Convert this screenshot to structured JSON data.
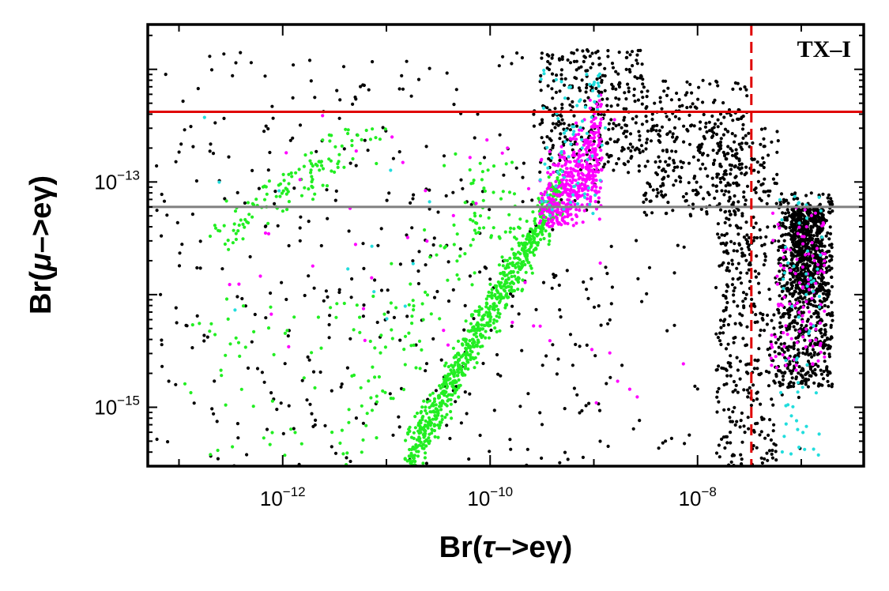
{
  "chart_data": {
    "type": "scatter",
    "xscale": "log",
    "yscale": "log",
    "xlim": [
      5e-14,
      4e-07
    ],
    "ylim": [
      3e-16,
      2.5e-12
    ],
    "grid": false,
    "panel_label": "TX–I",
    "xlabel": {
      "prefix": "Br(",
      "greek": "τ",
      "suffix": "–>eγ)"
    },
    "ylabel": {
      "prefix": "Br(",
      "greek": "μ",
      "suffix": "–>eγ)"
    },
    "x_ticks": [
      {
        "value": 1e-12,
        "base": "10",
        "exp": "−12"
      },
      {
        "value": 1e-10,
        "base": "10",
        "exp": "−10"
      },
      {
        "value": 1e-08,
        "base": "10",
        "exp": "−8"
      }
    ],
    "y_ticks": [
      {
        "value": 1e-13,
        "base": "10",
        "exp": "−13"
      },
      {
        "value": 1e-15,
        "base": "10",
        "exp": "−15"
      }
    ],
    "reference_lines": [
      {
        "orientation": "horizontal",
        "value": 4.2e-13,
        "color": "#e00000",
        "style": "solid"
      },
      {
        "orientation": "horizontal",
        "value": 6e-14,
        "color": "#808080",
        "style": "solid"
      },
      {
        "orientation": "vertical",
        "value": 3.3e-08,
        "color": "#e00000",
        "style": "dashed"
      }
    ],
    "series": [
      {
        "color": "#000000",
        "clusters": [
          {
            "x": [
              6e-14,
              1.5e-09
            ],
            "y": [
              3e-16,
              1.5e-12
            ],
            "n": 420,
            "mode": "uniform"
          },
          {
            "x": [
              3e-10,
              3e-09
            ],
            "y": [
              1.2e-13,
              1.5e-12
            ],
            "n": 320,
            "mode": "uniform"
          },
          {
            "x": [
              3e-09,
              3e-08
            ],
            "y": [
              5e-14,
              8e-13
            ],
            "n": 320,
            "mode": "uniform"
          },
          {
            "x": [
              8e-10,
              1e-07
            ],
            "y": [
              3e-16,
              4e-14
            ],
            "n": 40,
            "mode": "uniform"
          },
          {
            "x": [
              1.5e-08,
              6e-08
            ],
            "y": [
              3e-16,
              3e-13
            ],
            "n": 420,
            "mode": "uniform"
          },
          {
            "x": [
              6e-08,
              2e-07
            ],
            "y": [
              1.5e-15,
              8e-14
            ],
            "n": 650,
            "mode": "uniform"
          },
          {
            "x": [
              8e-08,
              1.6e-07
            ],
            "y": [
              1e-14,
              6e-14
            ],
            "n": 500,
            "mode": "uniform"
          }
        ]
      },
      {
        "color": "#22ee22",
        "clusters": [
          {
            "x": [
              2e-13,
              1e-11
            ],
            "y": [
              2.5e-14,
              3e-13
            ],
            "n": 130,
            "mode": "diagonal",
            "slope": 0.72,
            "spread": 0.12
          },
          {
            "x": [
              1e-13,
              8e-12
            ],
            "y": [
              3e-16,
              1e-14
            ],
            "n": 60,
            "mode": "uniform"
          },
          {
            "x": [
              3e-12,
              1e-10
            ],
            "y": [
              3e-16,
              3e-13
            ],
            "n": 90,
            "mode": "diagonal",
            "slope": 1.6,
            "spread": 0.35
          },
          {
            "x": [
              1.5e-11,
              5e-10
            ],
            "y": [
              3e-16,
              6e-13
            ],
            "n": 800,
            "mode": "diagonal",
            "slope": 1.65,
            "spread": 0.12
          },
          {
            "x": [
              6e-11,
              2e-10
            ],
            "y": [
              3e-14,
              1.5e-13
            ],
            "n": 40,
            "mode": "uniform"
          }
        ]
      },
      {
        "color": "#ff00ff",
        "clusters": [
          {
            "x": [
              3e-10,
              1.2e-09
            ],
            "y": [
              4e-14,
              9e-13
            ],
            "n": 450,
            "mode": "diagonal",
            "slope": 1.2,
            "spread": 0.22
          },
          {
            "x": [
              5e-08,
              1.7e-07
            ],
            "y": [
              2e-15,
              6e-14
            ],
            "n": 110,
            "mode": "uniform"
          },
          {
            "x": [
              2e-13,
              2e-09
            ],
            "y": [
              3e-15,
              4e-13
            ],
            "n": 40,
            "mode": "uniform"
          },
          {
            "x": [
              1e-09,
              1e-08
            ],
            "y": [
              1e-15,
              4e-15
            ],
            "n": 6,
            "mode": "uniform"
          }
        ]
      },
      {
        "color": "#22dddd",
        "clusters": [
          {
            "x": [
              3e-10,
              1.3e-09
            ],
            "y": [
              5e-14,
              1e-12
            ],
            "n": 80,
            "mode": "uniform"
          },
          {
            "x": [
              6e-08,
              1.6e-07
            ],
            "y": [
              3e-16,
              8e-14
            ],
            "n": 60,
            "mode": "uniform"
          },
          {
            "x": [
              1.5e-13,
              1e-10
            ],
            "y": [
              3e-15,
              5e-13
            ],
            "n": 12,
            "mode": "uniform"
          }
        ]
      }
    ]
  }
}
